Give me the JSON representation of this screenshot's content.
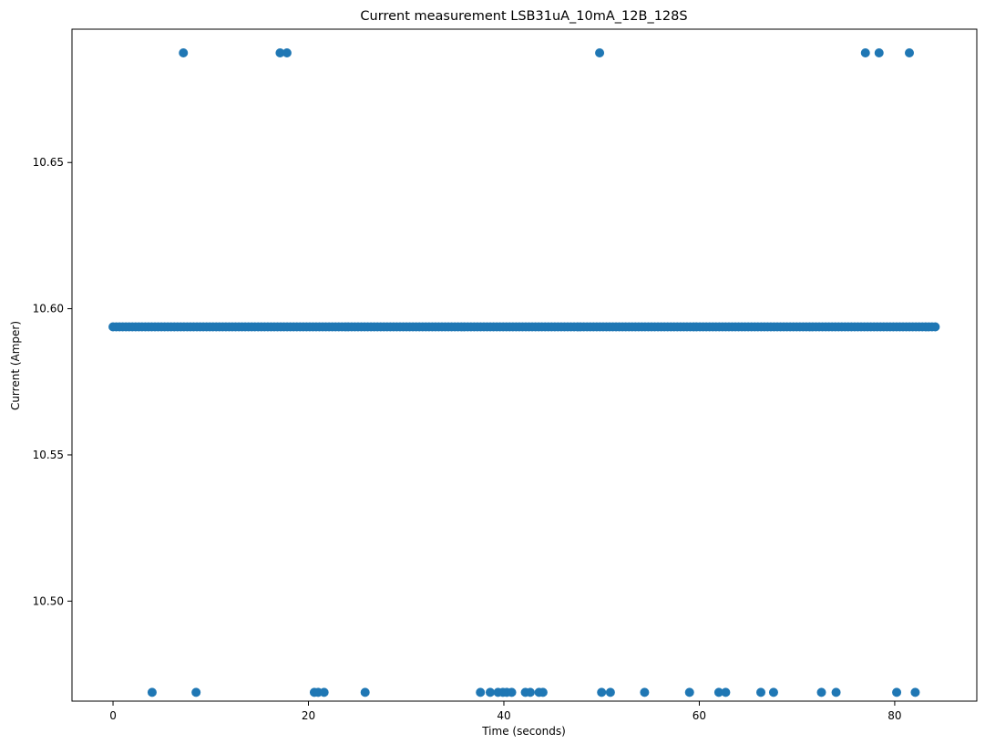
{
  "chart_data": {
    "type": "scatter",
    "title": "Current measurement LSB31uA_10mA_12B_128S",
    "xlabel": "Time (seconds)",
    "ylabel": "Current (Amper)",
    "xlim": [
      -4.2,
      88.4
    ],
    "ylim": [
      10.4658,
      10.6956
    ],
    "x_ticks": [
      0,
      20,
      40,
      60,
      80
    ],
    "y_ticks": [
      10.5,
      10.55,
      10.6,
      10.65
    ],
    "x_tick_labels": [
      "0",
      "20",
      "40",
      "60",
      "80"
    ],
    "y_tick_labels": [
      "10.50",
      "10.55",
      "10.60",
      "10.65"
    ],
    "grid": false,
    "marker_color": "#1f77b4",
    "baseline_level": {
      "y": 10.5938,
      "x_start": 0.0,
      "x_end": 84.2,
      "step": 0.33,
      "description_source": "dense run of points at nominal current"
    },
    "high_outliers": {
      "y": 10.6875,
      "x": [
        7.2,
        17.1,
        17.8,
        49.8,
        77.0,
        78.4,
        81.5
      ]
    },
    "low_outliers": {
      "y": 10.4688,
      "x": [
        4.0,
        8.5,
        20.6,
        21.0,
        21.6,
        25.8,
        37.6,
        38.6,
        39.4,
        39.9,
        40.3,
        40.8,
        42.2,
        42.7,
        43.6,
        44.0,
        50.0,
        50.9,
        54.4,
        59.0,
        62.0,
        62.7,
        66.3,
        67.6,
        72.5,
        74.0,
        80.2,
        82.1
      ]
    }
  }
}
